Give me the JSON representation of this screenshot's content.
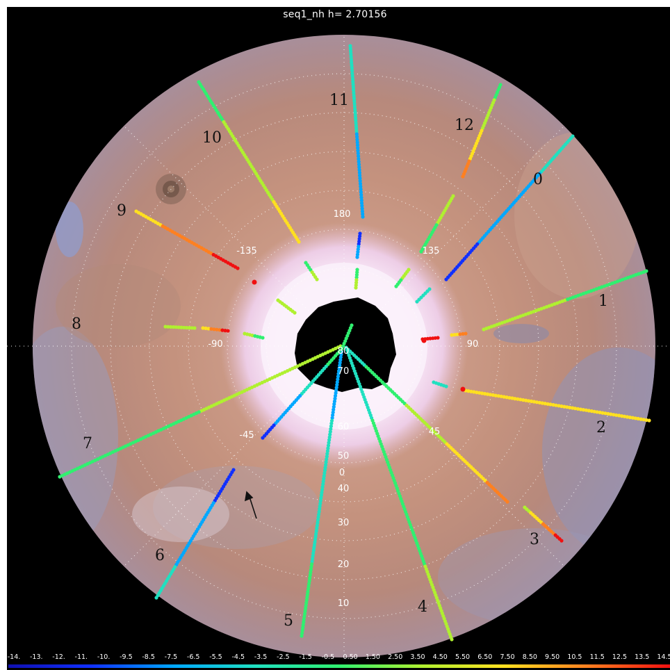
{
  "title": "seq1_nh h= 2.70156",
  "colormap": [
    "#1010b0",
    "#1030ff",
    "#00a8ff",
    "#20e0c0",
    "#30f070",
    "#b0f030",
    "#ffe020",
    "#ff8020",
    "#f01010"
  ],
  "colors": {
    "pole_cap": "#f4e4f4",
    "terrain": "#c2927e",
    "grid_line": "#ffffff",
    "frame": "#000000"
  },
  "colorbar_ticks": [
    "-14.",
    "-13.",
    "-12.",
    "-11.",
    "-10.",
    "-9.5",
    "-8.5",
    "-7.5",
    "-6.5",
    "-5.5",
    "-4.5",
    "-3.5",
    "-2.5",
    "-1.5",
    "-0.5",
    "0.50",
    "1.50",
    "2.50",
    "3.50",
    "4.50",
    "5.50",
    "6.50",
    "7.50",
    "8.50",
    "9.50",
    "10.5",
    "11.5",
    "12.5",
    "13.5",
    "14.5"
  ],
  "longitude_labels": [
    "180",
    "135",
    "90",
    "45",
    "0",
    "-45",
    "-90",
    "-135"
  ],
  "latitude_labels": [
    "80",
    "70",
    "60",
    "50",
    "40",
    "30",
    "20",
    "10"
  ],
  "track_labels": [
    "0",
    "1",
    "2",
    "3",
    "4",
    "5",
    "6",
    "7",
    "8",
    "9",
    "10",
    "11",
    "12"
  ],
  "annotation": "arrow pointing toward polar cap"
}
